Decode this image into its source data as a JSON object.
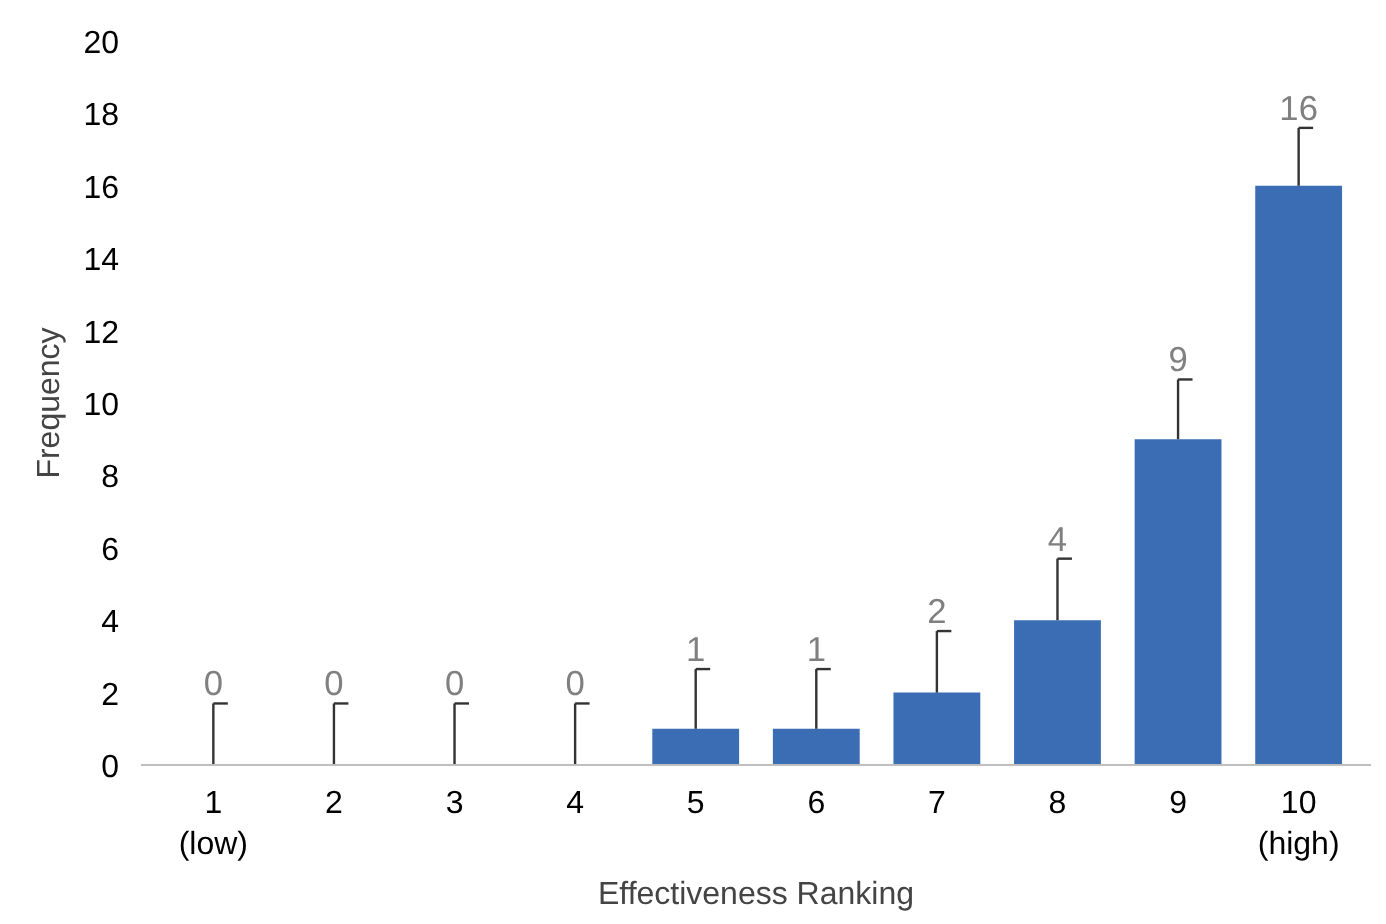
{
  "chart_data": {
    "type": "bar",
    "xlabel": "Effectiveness Ranking",
    "ylabel": "Frequency",
    "categories": [
      "1\n(low)",
      "2",
      "3",
      "4",
      "5",
      "6",
      "7",
      "8",
      "9",
      "10\n(high)"
    ],
    "values": [
      0,
      0,
      0,
      0,
      1,
      1,
      2,
      4,
      9,
      16
    ],
    "errors": [
      [
        0,
        1.7
      ],
      [
        0,
        1.7
      ],
      [
        0,
        1.7
      ],
      [
        0,
        1.7
      ],
      [
        1,
        2.65
      ],
      [
        1,
        2.65
      ],
      [
        2,
        3.7
      ],
      [
        4,
        5.7
      ],
      [
        9,
        10.65
      ],
      [
        16,
        17.6
      ]
    ],
    "color": "#3b6db5",
    "data_labels": true,
    "ylim": [
      0,
      20
    ],
    "yticks": [
      0,
      2,
      4,
      6,
      8,
      10,
      12,
      14,
      16,
      18,
      20
    ],
    "grid": false
  }
}
